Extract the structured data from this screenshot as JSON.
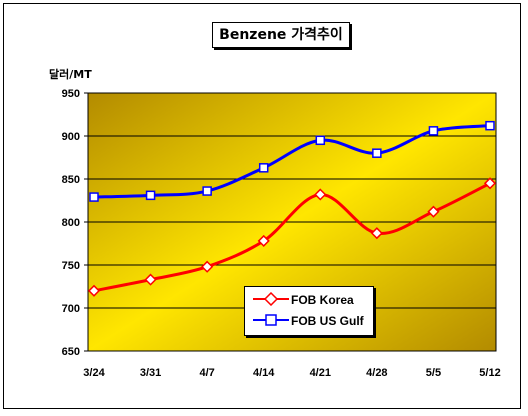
{
  "chart_data": {
    "type": "line",
    "title": "Benzene 가격추이",
    "ylabel": "달러/MT",
    "xlabel": "",
    "categories": [
      "3/24",
      "3/31",
      "4/7",
      "4/14",
      "4/21",
      "4/28",
      "5/5",
      "5/12"
    ],
    "ylim": [
      650,
      950
    ],
    "yticks": [
      650,
      700,
      750,
      800,
      850,
      900,
      950
    ],
    "grid": true,
    "legend_position": "bottom-center",
    "series": [
      {
        "name": "FOB Korea",
        "color": "#ff0000",
        "marker": "diamond",
        "values": [
          720,
          733,
          748,
          778,
          832,
          787,
          812,
          845
        ]
      },
      {
        "name": "FOB US Gulf",
        "color": "#0000ff",
        "marker": "square",
        "values": [
          829,
          831,
          836,
          863,
          895,
          880,
          906,
          912
        ]
      }
    ]
  }
}
